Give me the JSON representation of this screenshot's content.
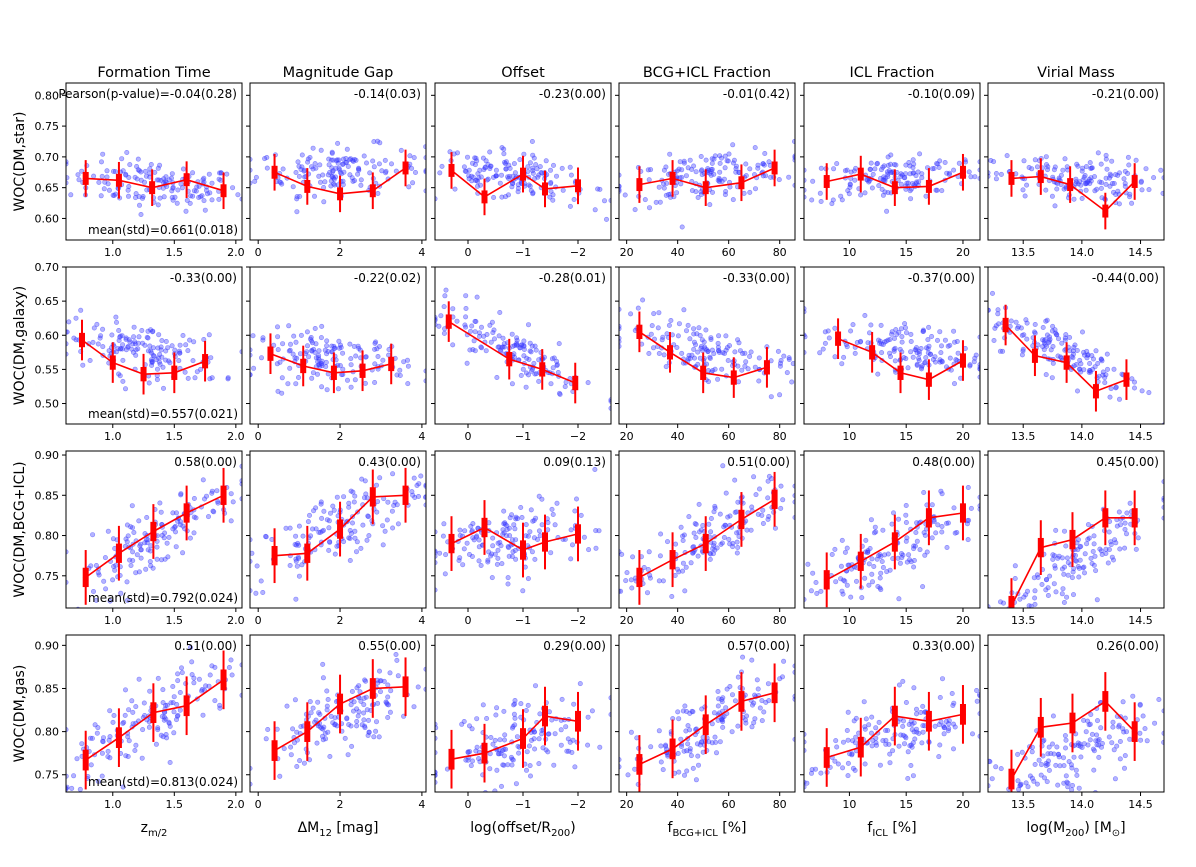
{
  "figure": {
    "column_titles": [
      "Formation Time",
      "Magnitude Gap",
      "Offset",
      "BCG+ICL Fraction",
      "ICL Fraction",
      "Virial Mass"
    ],
    "row_labels": [
      "WOC(DM,star)",
      "WOC(DM,galaxy)",
      "WOC(DM,BCG+ICL)",
      "WOC(DM,gas)"
    ],
    "x_labels": [
      "z_{m/2}",
      "ΔM_{12} [mag]",
      "log(offset/R_{200})",
      "f_{BCG+ICL} [%]",
      "f_{ICL} [%]",
      "log(M_{200}) [M_⊙]"
    ],
    "pearson_prefix": "Pearson(p-value)=",
    "mean_prefix": "mean(std)=",
    "colors": {
      "scatter": "#3b3bff",
      "binned": "#ff0000",
      "axis": "#000000"
    }
  },
  "chart_data": {
    "type": "scatter",
    "description_series": "blue points = individual clusters; red = binned median with 25-75% (thick) and 5-95% (thin) ranges",
    "columns": [
      {
        "title": "Formation Time",
        "xlabel": "z_{m/2}",
        "xlim": [
          0.62,
          2.05
        ],
        "xticks": [
          1.0,
          1.5,
          2.0
        ],
        "xticklabels": [
          "1.0",
          "1.5",
          "2.0"
        ]
      },
      {
        "title": "Magnitude Gap",
        "xlabel": "ΔM_{12} [mag]",
        "xlim": [
          -0.2,
          4.1
        ],
        "xticks": [
          0,
          2,
          4
        ],
        "xticklabels": [
          "0",
          "2",
          "4"
        ]
      },
      {
        "title": "Offset",
        "xlabel": "log(offset/R_{200})",
        "xlim": [
          0.6,
          -2.6
        ],
        "xticks": [
          0,
          -1,
          -2
        ],
        "xticklabels": [
          "0",
          "−1",
          "−2"
        ]
      },
      {
        "title": "BCG+ICL Fraction",
        "xlabel": "f_{BCG+ICL} [%]",
        "xlim": [
          17,
          86
        ],
        "xticks": [
          20,
          40,
          60,
          80
        ],
        "xticklabels": [
          "20",
          "40",
          "60",
          "80"
        ]
      },
      {
        "title": "ICL Fraction",
        "xlabel": "f_{ICL} [%]",
        "xlim": [
          6,
          21.5
        ],
        "xticks": [
          10,
          15,
          20
        ],
        "xticklabels": [
          "10",
          "15",
          "20"
        ]
      },
      {
        "title": "Virial Mass",
        "xlabel": "log(M_{200}) [M_⊙]",
        "xlim": [
          13.2,
          14.7
        ],
        "xticks": [
          13.5,
          14.0,
          14.5
        ],
        "xticklabels": [
          "13.5",
          "14.0",
          "14.5"
        ]
      }
    ],
    "rows": [
      {
        "ylabel": "WOC(DM,star)",
        "ylim": [
          0.565,
          0.82
        ],
        "yticks": [
          0.6,
          0.65,
          0.7,
          0.75,
          0.8
        ],
        "yticklabels": [
          "0.60",
          "0.65",
          "0.70",
          "0.75",
          "0.80"
        ],
        "mean_std": "0.661(0.018)",
        "center": 0.66,
        "spread": 0.035,
        "panels": [
          {
            "pearson": "-0.04(0.28)",
            "x": [
              0.78,
              1.05,
              1.32,
              1.6,
              1.9
            ],
            "y": [
              0.665,
              0.662,
              0.65,
              0.663,
              0.645
            ]
          },
          {
            "pearson": "-0.14(0.03)",
            "x": [
              0.4,
              1.2,
              2.0,
              2.8,
              3.6
            ],
            "y": [
              0.675,
              0.652,
              0.64,
              0.645,
              0.682
            ]
          },
          {
            "pearson": "-0.23(0.00)",
            "x": [
              0.3,
              -0.3,
              -1.0,
              -1.4,
              -2.0
            ],
            "y": [
              0.678,
              0.635,
              0.672,
              0.648,
              0.653
            ]
          },
          {
            "pearson": "-0.01(0.42)",
            "x": [
              25,
              38,
              51,
              65,
              78
            ],
            "y": [
              0.655,
              0.665,
              0.65,
              0.658,
              0.682
            ]
          },
          {
            "pearson": "-0.10(0.09)",
            "x": [
              8,
              11,
              14,
              17,
              20
            ],
            "y": [
              0.66,
              0.672,
              0.65,
              0.652,
              0.675
            ]
          },
          {
            "pearson": "-0.21(0.00)",
            "x": [
              13.4,
              13.65,
              13.9,
              14.2,
              14.45
            ],
            "y": [
              0.665,
              0.668,
              0.655,
              0.612,
              0.66
            ]
          }
        ]
      },
      {
        "ylabel": "WOC(DM,galaxy)",
        "ylim": [
          0.47,
          0.7
        ],
        "yticks": [
          0.5,
          0.55,
          0.6,
          0.65,
          0.7
        ],
        "yticklabels": [
          "0.50",
          "0.55",
          "0.60",
          "0.65",
          "0.70"
        ],
        "mean_std": "0.557(0.021)",
        "center": 0.557,
        "spread": 0.035,
        "panels": [
          {
            "pearson": "-0.33(0.00)",
            "x": [
              0.75,
              1.0,
              1.25,
              1.5,
              1.75
            ],
            "y": [
              0.593,
              0.56,
              0.543,
              0.545,
              0.562
            ]
          },
          {
            "pearson": "-0.22(0.02)",
            "x": [
              0.3,
              1.1,
              1.85,
              2.55,
              3.25
            ],
            "y": [
              0.573,
              0.555,
              0.545,
              0.548,
              0.558
            ]
          },
          {
            "pearson": "-0.28(0.01)",
            "x": [
              0.35,
              -0.75,
              -1.35,
              -1.95
            ],
            "y": [
              0.62,
              0.565,
              0.55,
              0.53
            ]
          },
          {
            "pearson": "-0.33(0.00)",
            "x": [
              25,
              37,
              50,
              62,
              75
            ],
            "y": [
              0.605,
              0.575,
              0.545,
              0.538,
              0.553
            ]
          },
          {
            "pearson": "-0.37(0.00)",
            "x": [
              9,
              12,
              14.5,
              17,
              20
            ],
            "y": [
              0.595,
              0.575,
              0.545,
              0.535,
              0.563
            ]
          },
          {
            "pearson": "-0.44(0.00)",
            "x": [
              13.35,
              13.6,
              13.87,
              14.12,
              14.38
            ],
            "y": [
              0.615,
              0.57,
              0.56,
              0.518,
              0.535
            ]
          }
        ]
      },
      {
        "ylabel": "WOC(DM,BCG+ICL)",
        "ylim": [
          0.71,
          0.905
        ],
        "yticks": [
          0.75,
          0.8,
          0.85,
          0.9
        ],
        "yticklabels": [
          "0.75",
          "0.80",
          "0.85",
          "0.90"
        ],
        "mean_std": "0.792(0.024)",
        "center": 0.792,
        "spread": 0.04,
        "panels": [
          {
            "pearson": "0.58(0.00)",
            "x": [
              0.78,
              1.05,
              1.33,
              1.6,
              1.9
            ],
            "y": [
              0.748,
              0.778,
              0.805,
              0.828,
              0.85
            ]
          },
          {
            "pearson": "0.43(0.00)",
            "x": [
              0.4,
              1.2,
              2.0,
              2.8,
              3.6
            ],
            "y": [
              0.775,
              0.778,
              0.808,
              0.848,
              0.85
            ]
          },
          {
            "pearson": "0.09(0.13)",
            "x": [
              0.3,
              -0.3,
              -1.0,
              -1.4,
              -2.0
            ],
            "y": [
              0.79,
              0.81,
              0.782,
              0.792,
              0.802
            ]
          },
          {
            "pearson": "0.51(0.00)",
            "x": [
              25,
              38,
              51,
              65,
              78
            ],
            "y": [
              0.748,
              0.77,
              0.79,
              0.82,
              0.845
            ]
          },
          {
            "pearson": "0.48(0.00)",
            "x": [
              8,
              11,
              14,
              17,
              20
            ],
            "y": [
              0.745,
              0.768,
              0.792,
              0.822,
              0.828
            ]
          },
          {
            "pearson": "0.45(0.00)",
            "x": [
              13.4,
              13.65,
              13.92,
              14.2,
              14.45
            ],
            "y": [
              0.713,
              0.785,
              0.795,
              0.822,
              0.822
            ]
          }
        ]
      },
      {
        "ylabel": "WOC(DM,gas)",
        "ylim": [
          0.73,
          0.912
        ],
        "yticks": [
          0.75,
          0.8,
          0.85,
          0.9
        ],
        "yticklabels": [
          "0.75",
          "0.80",
          "0.85",
          "0.90"
        ],
        "mean_std": "0.813(0.024)",
        "center": 0.813,
        "spread": 0.04,
        "panels": [
          {
            "pearson": "0.51(0.00)",
            "x": [
              0.78,
              1.05,
              1.33,
              1.6,
              1.9
            ],
            "y": [
              0.767,
              0.793,
              0.822,
              0.83,
              0.86
            ]
          },
          {
            "pearson": "0.55(0.00)",
            "x": [
              0.4,
              1.2,
              2.0,
              2.8,
              3.6
            ],
            "y": [
              0.778,
              0.8,
              0.832,
              0.85,
              0.852
            ]
          },
          {
            "pearson": "0.29(0.00)",
            "x": [
              0.3,
              -0.3,
              -1.0,
              -1.4,
              -2.0
            ],
            "y": [
              0.768,
              0.775,
              0.792,
              0.818,
              0.812
            ]
          },
          {
            "pearson": "0.57(0.00)",
            "x": [
              25,
              38,
              51,
              65,
              78
            ],
            "y": [
              0.762,
              0.78,
              0.808,
              0.835,
              0.845
            ]
          },
          {
            "pearson": "0.33(0.00)",
            "x": [
              8,
              11,
              14,
              17,
              20
            ],
            "y": [
              0.77,
              0.782,
              0.818,
              0.812,
              0.82
            ]
          },
          {
            "pearson": "0.26(0.00)",
            "x": [
              13.4,
              13.65,
              13.92,
              14.2,
              14.45
            ],
            "y": [
              0.745,
              0.805,
              0.81,
              0.835,
              0.8
            ]
          }
        ]
      }
    ]
  }
}
